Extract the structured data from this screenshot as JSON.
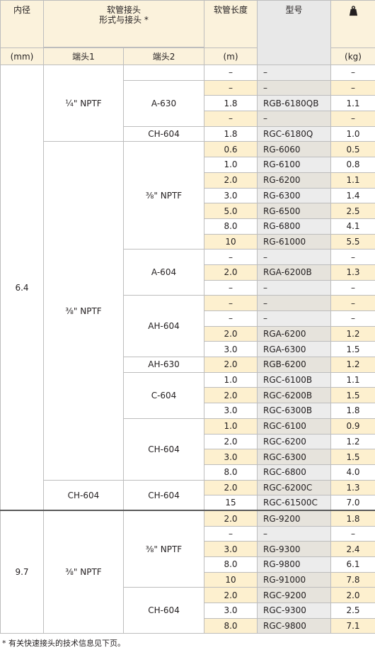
{
  "header": {
    "diameter": "内径",
    "hose_type_title": "软管接头",
    "hose_type_subtitle": "形式与接头 *",
    "length": "软管长度",
    "model": "型号",
    "end1": "端头1",
    "end2": "端头2",
    "unit_mm": "(mm)",
    "unit_m": "(m)",
    "unit_kg": "(kg)",
    "weight_icon": "weight-icon"
  },
  "groups": {
    "d64": "6.4",
    "d97": "9.7",
    "e1_quarter": "¼\" NPTF",
    "e1_threeeighths_a": "⅜\" NPTF",
    "e1_ch604": "CH-604",
    "e1_threeeighths_b": "⅜\" NPTF",
    "e2_a630": "A-630",
    "e2_ch604_a": "CH-604",
    "e2_nptf_a": "⅜\" NPTF",
    "e2_a604": "A-604",
    "e2_ah604": "AH-604",
    "e2_ah630": "AH-630",
    "e2_c604": "C-604",
    "e2_ch604_b": "CH-604",
    "e2_ch604_c": "CH-604",
    "e2_nptf_b": "⅜\" NPTF",
    "e2_ch604_d": "CH-604"
  },
  "rows": [
    {
      "len": "–",
      "model": "–",
      "wt": "–"
    },
    {
      "len": "–",
      "model": "–",
      "wt": "–"
    },
    {
      "len": "1.8",
      "model": "RGB-6180QB",
      "wt": "1.1"
    },
    {
      "len": "–",
      "model": "–",
      "wt": "–"
    },
    {
      "len": "1.8",
      "model": "RGC-6180Q",
      "wt": "1.0"
    },
    {
      "len": "0.6",
      "model": "RG-6060",
      "wt": "0.5"
    },
    {
      "len": "1.0",
      "model": "RG-6100",
      "wt": "0.8"
    },
    {
      "len": "2.0",
      "model": "RG-6200",
      "wt": "1.1"
    },
    {
      "len": "3.0",
      "model": "RG-6300",
      "wt": "1.4"
    },
    {
      "len": "5.0",
      "model": "RG-6500",
      "wt": "2.5"
    },
    {
      "len": "8.0",
      "model": "RG-6800",
      "wt": "4.1"
    },
    {
      "len": "10",
      "model": "RG-61000",
      "wt": "5.5"
    },
    {
      "len": "–",
      "model": "–",
      "wt": "–"
    },
    {
      "len": "2.0",
      "model": "RGA-6200B",
      "wt": "1.3"
    },
    {
      "len": "–",
      "model": "–",
      "wt": "–"
    },
    {
      "len": "–",
      "model": "–",
      "wt": "–"
    },
    {
      "len": "–",
      "model": "–",
      "wt": "–"
    },
    {
      "len": "2.0",
      "model": "RGA-6200",
      "wt": "1.2"
    },
    {
      "len": "3.0",
      "model": "RGA-6300",
      "wt": "1.5"
    },
    {
      "len": "2.0",
      "model": "RGB-6200",
      "wt": "1.2"
    },
    {
      "len": "1.0",
      "model": "RGC-6100B",
      "wt": "1.1"
    },
    {
      "len": "2.0",
      "model": "RGC-6200B",
      "wt": "1.5"
    },
    {
      "len": "3.0",
      "model": "RGC-6300B",
      "wt": "1.8"
    },
    {
      "len": "1.0",
      "model": "RGC-6100",
      "wt": "0.9"
    },
    {
      "len": "2.0",
      "model": "RGC-6200",
      "wt": "1.2"
    },
    {
      "len": "3.0",
      "model": "RGC-6300",
      "wt": "1.5"
    },
    {
      "len": "8.0",
      "model": "RGC-6800",
      "wt": "4.0"
    },
    {
      "len": "2.0",
      "model": "RGC-6200C",
      "wt": "1.3"
    },
    {
      "len": "15",
      "model": "RGC-61500C",
      "wt": "7.0"
    },
    {
      "len": "2.0",
      "model": "RG-9200",
      "wt": "1.8"
    },
    {
      "len": "–",
      "model": "–",
      "wt": "–"
    },
    {
      "len": "3.0",
      "model": "RG-9300",
      "wt": "2.4"
    },
    {
      "len": "8.0",
      "model": "RG-9800",
      "wt": "6.1"
    },
    {
      "len": "10",
      "model": "RG-91000",
      "wt": "7.8"
    },
    {
      "len": "2.0",
      "model": "RGC-9200",
      "wt": "2.0"
    },
    {
      "len": "3.0",
      "model": "RGC-9300",
      "wt": "2.5"
    },
    {
      "len": "8.0",
      "model": "RGC-9800",
      "wt": "7.1"
    }
  ],
  "footnote": "* 有关快速接头的技术信息见下页。"
}
